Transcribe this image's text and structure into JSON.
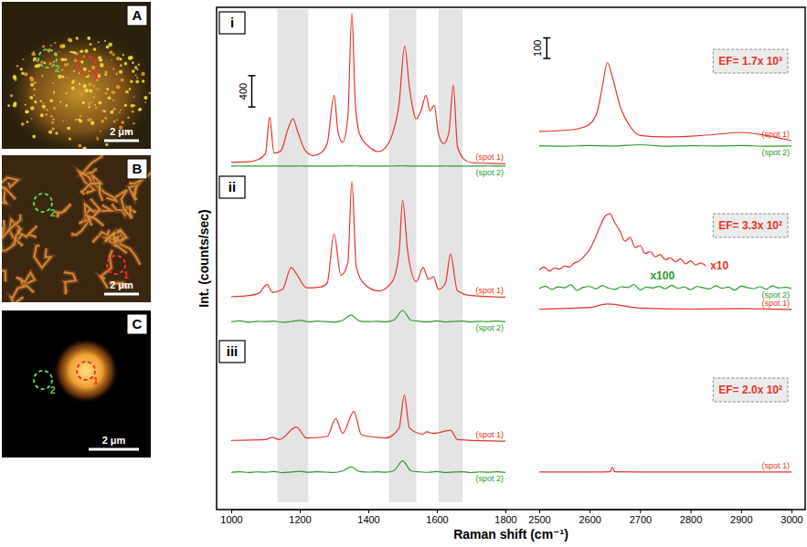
{
  "x_label": "Raman shift (cm⁻¹)",
  "y_label": "Int. (counts/sec)",
  "shaded_x_ranges": [
    [
      1135,
      1225
    ],
    [
      1460,
      1540
    ],
    [
      1605,
      1675
    ]
  ],
  "images": [
    {
      "label": "A",
      "scale_bar": "2 μm",
      "spots": [
        "1",
        "2"
      ]
    },
    {
      "label": "B",
      "scale_bar": "2 μm",
      "spots": [
        "1",
        "2"
      ]
    },
    {
      "label": "C",
      "scale_bar": "2 μm",
      "spots": [
        "1",
        "2"
      ]
    }
  ],
  "chart_data": [
    {
      "type": "line",
      "title": "i",
      "xlim": [
        1000,
        1800
      ],
      "ylim": [
        0,
        2100
      ],
      "tick_labels": false,
      "scale_bar": {
        "value": 400,
        "label": "400",
        "x": 1060,
        "y": 850
      },
      "series": [
        {
          "name": "(spot 1)",
          "color": "#e8332a",
          "x": [
            1000,
            1050,
            1080,
            1100,
            1112,
            1125,
            1145,
            1165,
            1180,
            1195,
            1215,
            1240,
            1260,
            1280,
            1300,
            1312,
            1325,
            1340,
            1352,
            1362,
            1375,
            1400,
            1430,
            1450,
            1470,
            1490,
            1506,
            1520,
            1540,
            1555,
            1568,
            1580,
            1592,
            1605,
            1620,
            1635,
            1648,
            1660,
            1680,
            1700,
            1750,
            1800
          ],
          "values": [
            145,
            150,
            180,
            260,
            720,
            260,
            290,
            560,
            700,
            520,
            300,
            230,
            260,
            380,
            1000,
            520,
            400,
            700,
            2050,
            900,
            500,
            350,
            280,
            330,
            500,
            900,
            1630,
            1100,
            700,
            820,
            1000,
            800,
            870,
            500,
            380,
            520,
            1130,
            350,
            180,
            140,
            130,
            125
          ]
        },
        {
          "name": "(spot 2)",
          "color": "#2e9a2e",
          "x": [
            1000,
            1025,
            1050,
            1075,
            1100,
            1125,
            1150,
            1175,
            1200,
            1225,
            1250,
            1275,
            1300,
            1325,
            1350,
            1375,
            1400,
            1425,
            1450,
            1475,
            1500,
            1525,
            1550,
            1575,
            1600,
            1625,
            1650,
            1675,
            1700,
            1725,
            1750,
            1775,
            1800
          ],
          "values": [
            95,
            96,
            94,
            95,
            95,
            96,
            94,
            95,
            96,
            95,
            95,
            94,
            95,
            96,
            98,
            95,
            95,
            94,
            95,
            96,
            99,
            95,
            95,
            94,
            95,
            96,
            95,
            94,
            95,
            95,
            96,
            95,
            94
          ]
        }
      ]
    },
    {
      "type": "line",
      "xlim": [
        2500,
        3000
      ],
      "ylim": [
        0,
        800
      ],
      "tick_labels": false,
      "scale_bar": {
        "value": 100,
        "label": "100",
        "x": 2515,
        "y": 560
      },
      "annotations": [
        {
          "text": "EF= 1.7x 10³",
          "color": "#e8332a"
        }
      ],
      "series": [
        {
          "name": "(spot 1)",
          "color": "#e8332a",
          "x": [
            2500,
            2550,
            2580,
            2600,
            2615,
            2625,
            2635,
            2645,
            2660,
            2680,
            2700,
            2750,
            2800,
            2850,
            2900,
            2950,
            3000
          ],
          "values": [
            205,
            210,
            220,
            240,
            300,
            420,
            540,
            470,
            330,
            230,
            185,
            178,
            182,
            190,
            200,
            185,
            160
          ]
        },
        {
          "name": "(spot 2)",
          "color": "#2e9a2e",
          "x": [
            2500,
            2550,
            2600,
            2650,
            2700,
            2750,
            2800,
            2850,
            2900,
            2950,
            3000
          ],
          "values": [
            135,
            133,
            136,
            134,
            140,
            133,
            135,
            134,
            136,
            133,
            134
          ]
        }
      ]
    },
    {
      "type": "line",
      "title": "ii",
      "xlim": [
        1000,
        1800
      ],
      "ylim": [
        0,
        2100
      ],
      "tick_labels": false,
      "series": [
        {
          "name": "(spot 1)",
          "color": "#e8332a",
          "x": [
            1000,
            1050,
            1080,
            1105,
            1120,
            1150,
            1175,
            1190,
            1220,
            1260,
            1280,
            1300,
            1320,
            1340,
            1352,
            1365,
            1390,
            1430,
            1470,
            1490,
            1500,
            1515,
            1540,
            1560,
            1575,
            1590,
            1605,
            1625,
            1640,
            1660,
            1700,
            1800
          ],
          "values": [
            525,
            540,
            570,
            680,
            580,
            620,
            900,
            820,
            640,
            650,
            700,
            1330,
            800,
            950,
            2000,
            900,
            680,
            600,
            720,
            1100,
            1760,
            1100,
            720,
            900,
            750,
            780,
            620,
            700,
            1070,
            600,
            540,
            520
          ]
        },
        {
          "name": "(spot 2)",
          "color": "#2e9a2e",
          "x": [
            1000,
            1025,
            1050,
            1075,
            1100,
            1125,
            1150,
            1175,
            1200,
            1225,
            1250,
            1275,
            1300,
            1325,
            1350,
            1375,
            1400,
            1425,
            1450,
            1475,
            1500,
            1525,
            1550,
            1575,
            1600,
            1625,
            1650,
            1675,
            1700,
            1725,
            1750,
            1775,
            1800
          ],
          "values": [
            205,
            218,
            200,
            212,
            208,
            215,
            200,
            210,
            222,
            205,
            214,
            208,
            200,
            225,
            290,
            215,
            208,
            212,
            205,
            230,
            350,
            225,
            212,
            206,
            218,
            204,
            210,
            215,
            203,
            212,
            208,
            214,
            205
          ]
        }
      ]
    },
    {
      "type": "line",
      "xlim": [
        2500,
        3000
      ],
      "ylim": [
        0,
        800
      ],
      "tick_labels": false,
      "annotations": [
        {
          "text": "EF= 3.3x 10²",
          "color": "#e8332a"
        },
        {
          "text": "x100",
          "color": "#2e9a2e",
          "x": 2720,
          "y": 285
        }
      ],
      "series": [
        {
          "name": "(spot 1)",
          "color": "#e8332a",
          "x": [
            2500,
            2600,
            2635,
            2700,
            2800,
            2900,
            3000
          ],
          "values": [
            140,
            148,
            165,
            145,
            140,
            143,
            138
          ]
        },
        {
          "name": "x10",
          "color": "#e8332a",
          "x": [
            2500,
            2510,
            2520,
            2530,
            2540,
            2550,
            2560,
            2570,
            2580,
            2590,
            2600,
            2610,
            2620,
            2630,
            2640,
            2650,
            2660,
            2670,
            2680,
            2690,
            2700,
            2710,
            2720,
            2730,
            2740,
            2750,
            2760,
            2770,
            2780,
            2790,
            2800,
            2810,
            2820,
            2830
          ],
          "values": [
            330,
            345,
            325,
            340,
            335,
            350,
            345,
            365,
            375,
            400,
            430,
            480,
            540,
            590,
            605,
            560,
            520,
            470,
            490,
            440,
            450,
            410,
            420,
            395,
            405,
            380,
            390,
            370,
            385,
            360,
            375,
            355,
            365,
            350
          ]
        },
        {
          "name": "(spot 2)",
          "color": "#2e9a2e",
          "x": [
            2500,
            2512.5,
            2525,
            2537.5,
            2550,
            2562.5,
            2575,
            2587.5,
            2600,
            2612.5,
            2625,
            2637.5,
            2650,
            2662.5,
            2675,
            2687.5,
            2700,
            2712.5,
            2725,
            2737.5,
            2750,
            2762.5,
            2775,
            2787.5,
            2800,
            2812.5,
            2825,
            2837.5,
            2850,
            2862.5,
            2875,
            2887.5,
            2900,
            2912.5,
            2925,
            2937.5,
            2950,
            2962.5,
            2975,
            2987.5,
            3000
          ],
          "values": [
            240,
            252,
            236,
            248,
            244,
            258,
            232,
            246,
            250,
            238,
            255,
            242,
            236,
            249,
            245,
            260,
            234,
            247,
            243,
            251,
            239,
            256,
            241,
            248,
            235,
            250,
            244,
            238,
            254,
            242,
            247,
            233,
            252,
            245,
            240,
            249,
            237,
            253,
            243,
            246,
            241
          ]
        }
      ]
    },
    {
      "type": "line",
      "title": "iii",
      "xlim": [
        1000,
        1800
      ],
      "ylim": [
        0,
        2100
      ],
      "tick_labels": "x",
      "xticks": [
        1000,
        1200,
        1400,
        1600,
        1800
      ],
      "series": [
        {
          "name": "(spot 1)",
          "color": "#e8332a",
          "x": [
            1000,
            1100,
            1120,
            1140,
            1190,
            1220,
            1280,
            1305,
            1325,
            1358,
            1380,
            1450,
            1490,
            1505,
            1520,
            1560,
            1570,
            1590,
            1640,
            1660,
            1800
          ],
          "values": [
            790,
            800,
            830,
            800,
            960,
            820,
            840,
            1070,
            880,
            1160,
            860,
            820,
            950,
            1370,
            950,
            870,
            900,
            880,
            920,
            800,
            780
          ]
        },
        {
          "name": "(spot 2)",
          "color": "#2e9a2e",
          "x": [
            1000,
            1025,
            1050,
            1075,
            1100,
            1125,
            1150,
            1175,
            1200,
            1225,
            1250,
            1275,
            1300,
            1325,
            1350,
            1375,
            1400,
            1425,
            1450,
            1475,
            1500,
            1525,
            1550,
            1575,
            1600,
            1625,
            1650,
            1675,
            1700,
            1725,
            1750,
            1775,
            1800
          ],
          "values": [
            382,
            390,
            380,
            388,
            384,
            392,
            378,
            386,
            395,
            383,
            390,
            385,
            380,
            400,
            450,
            392,
            385,
            390,
            383,
            405,
            530,
            400,
            388,
            382,
            392,
            380,
            386,
            390,
            379,
            388,
            384,
            390,
            381
          ]
        }
      ]
    },
    {
      "type": "line",
      "xlim": [
        2500,
        3000
      ],
      "ylim": [
        0,
        800
      ],
      "tick_labels": "x",
      "xticks": [
        2500,
        2600,
        2700,
        2800,
        2900,
        3000
      ],
      "annotations": [
        {
          "text": "EF= 2.0x 10²",
          "color": "#e8332a"
        }
      ],
      "series": [
        {
          "name": "(spot 1)",
          "color": "#e8332a",
          "x": [
            2500,
            2600,
            2640,
            2645,
            2650,
            2700,
            2800,
            2900,
            3000
          ],
          "values": [
            147,
            147,
            148,
            170,
            148,
            147,
            147,
            147,
            147
          ]
        }
      ]
    }
  ]
}
